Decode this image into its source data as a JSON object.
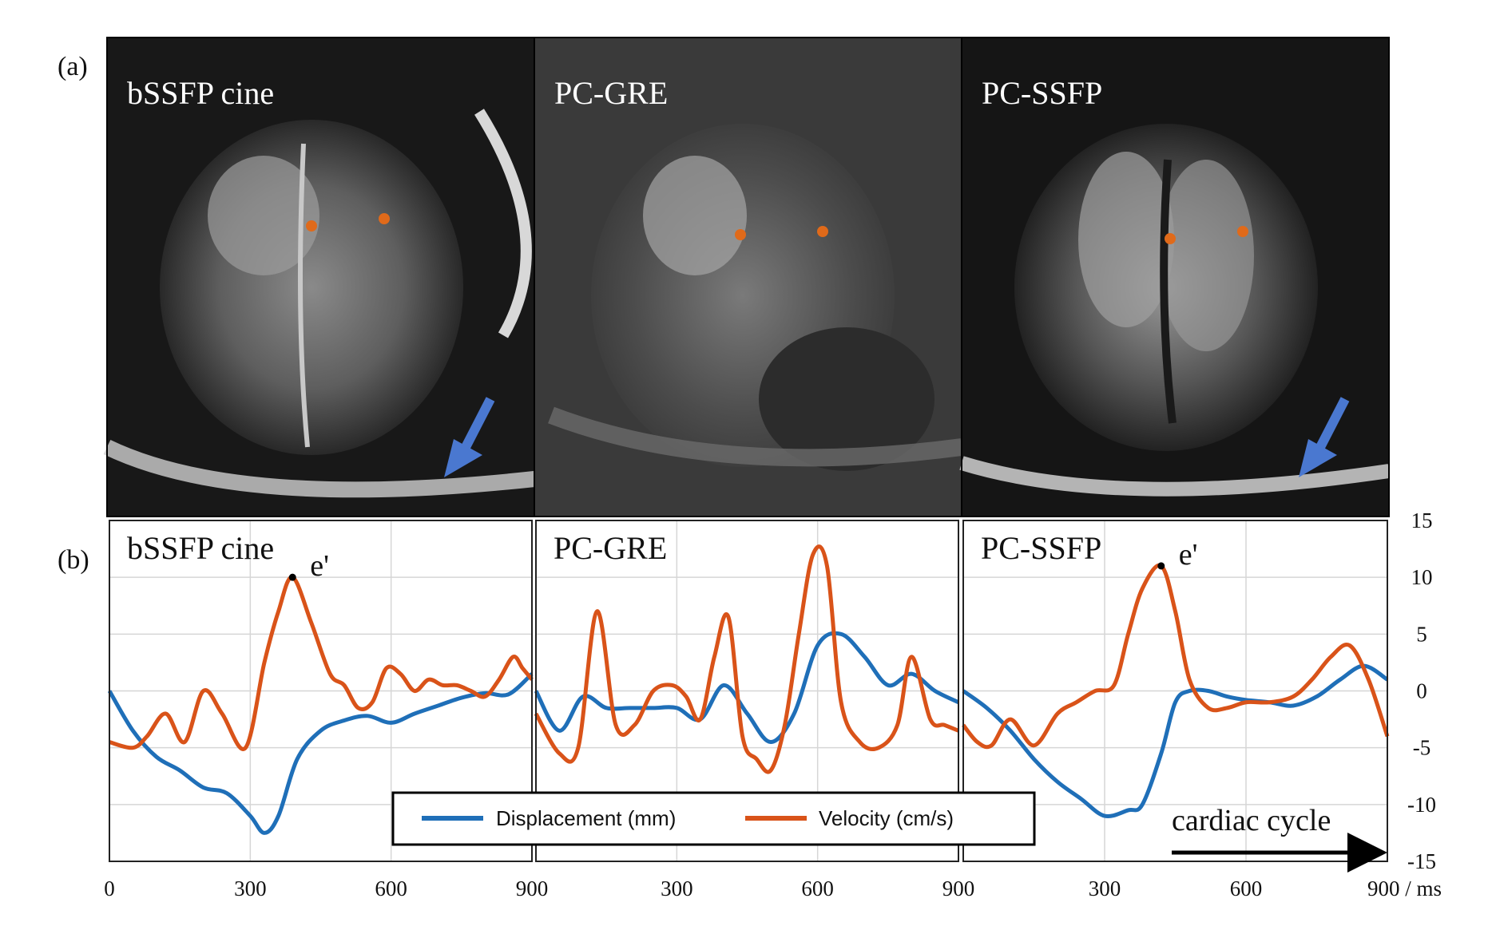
{
  "figure": {
    "panel_a_label": "(a)",
    "panel_b_label": "(b)",
    "colors": {
      "displacement": "#1f6fb8",
      "velocity": "#d95319",
      "marker": "#e06a1a",
      "arrow": "#4a78d0"
    }
  },
  "mri_panels": [
    {
      "title": "bSSFP cine",
      "image": "mri-4-chamber-bssfp",
      "has_arrow": true
    },
    {
      "title": "PC-GRE",
      "image": "mri-4-chamber-pc-gre",
      "has_arrow": false
    },
    {
      "title": "PC-SSFP",
      "image": "mri-4-chamber-pc-ssfp",
      "has_arrow": true
    }
  ],
  "chart_data": [
    {
      "type": "line",
      "title": "bSSFP cine",
      "annotation": "e'",
      "annotation_point": {
        "series": "Velocity (cm/s)",
        "x": 390,
        "y": 10
      },
      "xlim": [
        0,
        900
      ],
      "ylim": [
        -15,
        15
      ],
      "xticks": [
        "0",
        "300",
        "600",
        "900"
      ],
      "grid": true,
      "series": [
        {
          "name": "Displacement (mm)",
          "x": [
            0,
            50,
            100,
            150,
            200,
            250,
            300,
            330,
            360,
            400,
            450,
            500,
            550,
            600,
            650,
            700,
            750,
            800,
            850,
            900
          ],
          "y": [
            0,
            -3.5,
            -5.8,
            -7,
            -8.5,
            -9,
            -11,
            -12.5,
            -11,
            -6,
            -3.5,
            -2.6,
            -2.2,
            -2.8,
            -2,
            -1.3,
            -0.6,
            -0.2,
            -0.3,
            1.5
          ]
        },
        {
          "name": "Velocity (cm/s)",
          "x": [
            0,
            50,
            80,
            120,
            160,
            200,
            240,
            290,
            330,
            360,
            390,
            430,
            470,
            500,
            530,
            560,
            590,
            620,
            650,
            680,
            710,
            740,
            770,
            800,
            830,
            860,
            880,
            900
          ],
          "y": [
            -4.5,
            -5,
            -4,
            -2,
            -4.5,
            0,
            -2,
            -5,
            2.5,
            7,
            10,
            6,
            1.5,
            0.5,
            -1.5,
            -1,
            2,
            1.5,
            0,
            1,
            0.5,
            0.5,
            0,
            -0.5,
            1,
            3,
            2,
            1
          ]
        }
      ]
    },
    {
      "type": "line",
      "title": "PC-GRE",
      "xlim": [
        0,
        900
      ],
      "ylim": [
        -15,
        15
      ],
      "xticks": [
        "300",
        "600",
        "900"
      ],
      "grid": true,
      "series": [
        {
          "name": "Displacement (mm)",
          "x": [
            0,
            50,
            100,
            150,
            200,
            250,
            300,
            350,
            400,
            450,
            500,
            550,
            600,
            650,
            700,
            750,
            800,
            850,
            900
          ],
          "y": [
            0,
            -3.5,
            -0.5,
            -1.5,
            -1.5,
            -1.5,
            -1.5,
            -2.5,
            0.5,
            -2,
            -4.5,
            -2,
            4,
            5,
            3,
            0.5,
            1.5,
            0,
            -1
          ]
        },
        {
          "name": "Velocity (cm/s)",
          "x": [
            0,
            50,
            90,
            130,
            170,
            210,
            250,
            290,
            320,
            350,
            380,
            410,
            440,
            470,
            500,
            530,
            560,
            590,
            620,
            650,
            690,
            730,
            770,
            800,
            840,
            870,
            900
          ],
          "y": [
            -2,
            -5.5,
            -5,
            7,
            -3,
            -3,
            0,
            0.5,
            -0.5,
            -2.5,
            3,
            6.5,
            -4,
            -6,
            -7,
            -3,
            5,
            12,
            11,
            -1,
            -4.5,
            -5,
            -3,
            3,
            -2.5,
            -3,
            -3.5
          ]
        }
      ]
    },
    {
      "type": "line",
      "title": "PC-SSFP",
      "annotation": "e'",
      "annotation_point": {
        "series": "Velocity (cm/s)",
        "x": 420,
        "y": 11
      },
      "xlim": [
        0,
        900
      ],
      "ylim": [
        -15,
        15
      ],
      "xticks": [
        "300",
        "600",
        "900 / ms"
      ],
      "yticks": [
        "15",
        "10",
        "5",
        "0",
        "-5",
        "-10",
        "-15"
      ],
      "annotation_arrow": "cardiac cycle",
      "grid": true,
      "series": [
        {
          "name": "Displacement (mm)",
          "x": [
            0,
            50,
            100,
            150,
            200,
            250,
            300,
            350,
            380,
            420,
            450,
            480,
            520,
            560,
            600,
            650,
            700,
            750,
            800,
            850,
            900
          ],
          "y": [
            0,
            -1.5,
            -3.5,
            -6,
            -8,
            -9.5,
            -11,
            -10.5,
            -10,
            -5.5,
            -1,
            0,
            0,
            -0.5,
            -0.8,
            -1,
            -1.3,
            -0.5,
            1,
            2.2,
            1
          ]
        },
        {
          "name": "Velocity (cm/s)",
          "x": [
            0,
            30,
            60,
            100,
            150,
            200,
            240,
            280,
            320,
            350,
            380,
            420,
            450,
            480,
            520,
            560,
            600,
            650,
            700,
            740,
            780,
            820,
            860,
            900
          ],
          "y": [
            -3,
            -4.5,
            -4.8,
            -2.5,
            -4.8,
            -2,
            -1,
            0,
            0.5,
            5,
            9,
            11,
            7,
            1,
            -1.5,
            -1.5,
            -1,
            -1,
            -0.5,
            1,
            3,
            4,
            1,
            -4
          ]
        }
      ]
    }
  ],
  "legend": {
    "items": [
      {
        "label": "Displacement (mm)"
      },
      {
        "label": "Velocity (cm/s)"
      }
    ]
  }
}
